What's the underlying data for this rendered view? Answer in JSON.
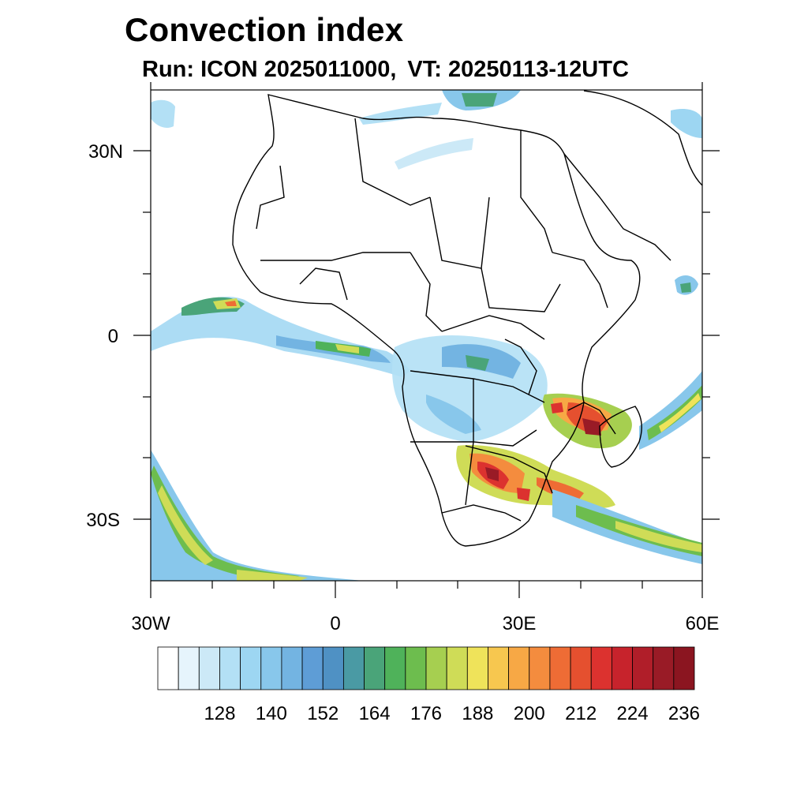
{
  "title": "Convection index",
  "subtitle": {
    "run": "Run: ICON 2025011000,",
    "vt": "VT: 20250113-12UTC"
  },
  "map": {
    "region": "Africa",
    "lon_range": [
      -30,
      60
    ],
    "lat_range": [
      -40,
      40
    ],
    "x_ticks": [
      {
        "value": -30,
        "label": "30W"
      },
      {
        "value": 0,
        "label": "0"
      },
      {
        "value": 30,
        "label": "30E"
      },
      {
        "value": 60,
        "label": "60E"
      }
    ],
    "y_ticks": [
      {
        "value": 30,
        "label": "30N"
      },
      {
        "value": 0,
        "label": "0"
      },
      {
        "value": -30,
        "label": "30S"
      }
    ]
  },
  "colorbar": {
    "colors": [
      "#ffffff",
      "#e6f4fc",
      "#cce9f7",
      "#b3e0f5",
      "#9dd6f2",
      "#88c7eb",
      "#73b4e2",
      "#5e9dd6",
      "#4f91c4",
      "#4a9aa4",
      "#4aa479",
      "#4fb25a",
      "#6dbd4e",
      "#a6cf50",
      "#cfdc57",
      "#efe35a",
      "#f7c74f",
      "#f7a845",
      "#f48c3e",
      "#ee6c35",
      "#e5502f",
      "#dc322f",
      "#c7232c",
      "#b01e29",
      "#991b26",
      "#8b1520"
    ],
    "labels": [
      "128",
      "140",
      "152",
      "164",
      "176",
      "188",
      "200",
      "212",
      "224",
      "236"
    ]
  }
}
